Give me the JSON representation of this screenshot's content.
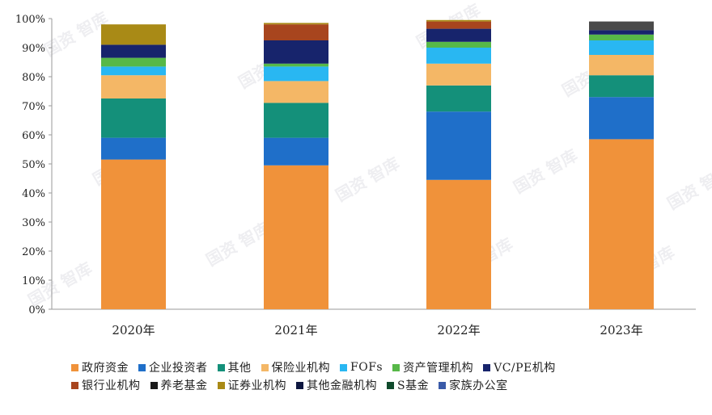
{
  "chart_data": {
    "type": "bar",
    "stacked": true,
    "normalized": true,
    "categories": [
      "2020年",
      "2021年",
      "2022年",
      "2023年"
    ],
    "yticks": [
      "0%",
      "10%",
      "20%",
      "30%",
      "40%",
      "50%",
      "60%",
      "70%",
      "80%",
      "90%",
      "100%"
    ],
    "ylim": [
      0,
      100
    ],
    "grid": false,
    "legend_position": "bottom",
    "series": [
      {
        "name": "政府资金",
        "color": "#F0923A",
        "values": [
          51.5,
          49.5,
          44.5,
          58.5
        ]
      },
      {
        "name": "企业投资者",
        "color": "#1F6FC9",
        "values": [
          7.5,
          9.5,
          23.5,
          14.5
        ]
      },
      {
        "name": "其他",
        "color": "#14907A",
        "values": [
          13.5,
          12,
          9,
          7.5
        ]
      },
      {
        "name": "保险业机构",
        "color": "#F4B766",
        "values": [
          8,
          7.5,
          7.5,
          7
        ]
      },
      {
        "name": "FOFs",
        "color": "#29B7F2",
        "values": [
          3,
          5,
          5.5,
          5
        ]
      },
      {
        "name": "资产管理机构",
        "color": "#57B848",
        "values": [
          3,
          1,
          2,
          2
        ]
      },
      {
        "name": "VC/PE机构",
        "color": "#17246C",
        "values": [
          4.5,
          8,
          4.5,
          1.5
        ]
      },
      {
        "name": "银行业机构",
        "color": "#A8451E",
        "values": [
          0,
          5.5,
          2.5,
          0
        ]
      },
      {
        "name": "养老基金",
        "color": "#1A1A1A",
        "values": [
          0,
          0,
          0,
          0
        ]
      },
      {
        "name": "证券业机构",
        "color": "#A98A16",
        "values": [
          7,
          0.5,
          0.5,
          0
        ]
      },
      {
        "name": "其他金融机构",
        "color": "#0E1740",
        "values": [
          0,
          0,
          0,
          0
        ]
      },
      {
        "name": "S基金",
        "color": "#0F4A2C",
        "values": [
          0,
          0,
          0,
          0
        ]
      },
      {
        "name": "家族办公室",
        "color": "#3A5AA8",
        "values": [
          0,
          0,
          0,
          0
        ]
      },
      {
        "name": "",
        "color": "#4A4A4A",
        "values": [
          0,
          0,
          0,
          3
        ]
      }
    ]
  },
  "legend_rows": [
    [
      0,
      1,
      2,
      3,
      4,
      5,
      6
    ],
    [
      7,
      8,
      9,
      10,
      11,
      12
    ]
  ],
  "watermark_text": "国资 智库"
}
